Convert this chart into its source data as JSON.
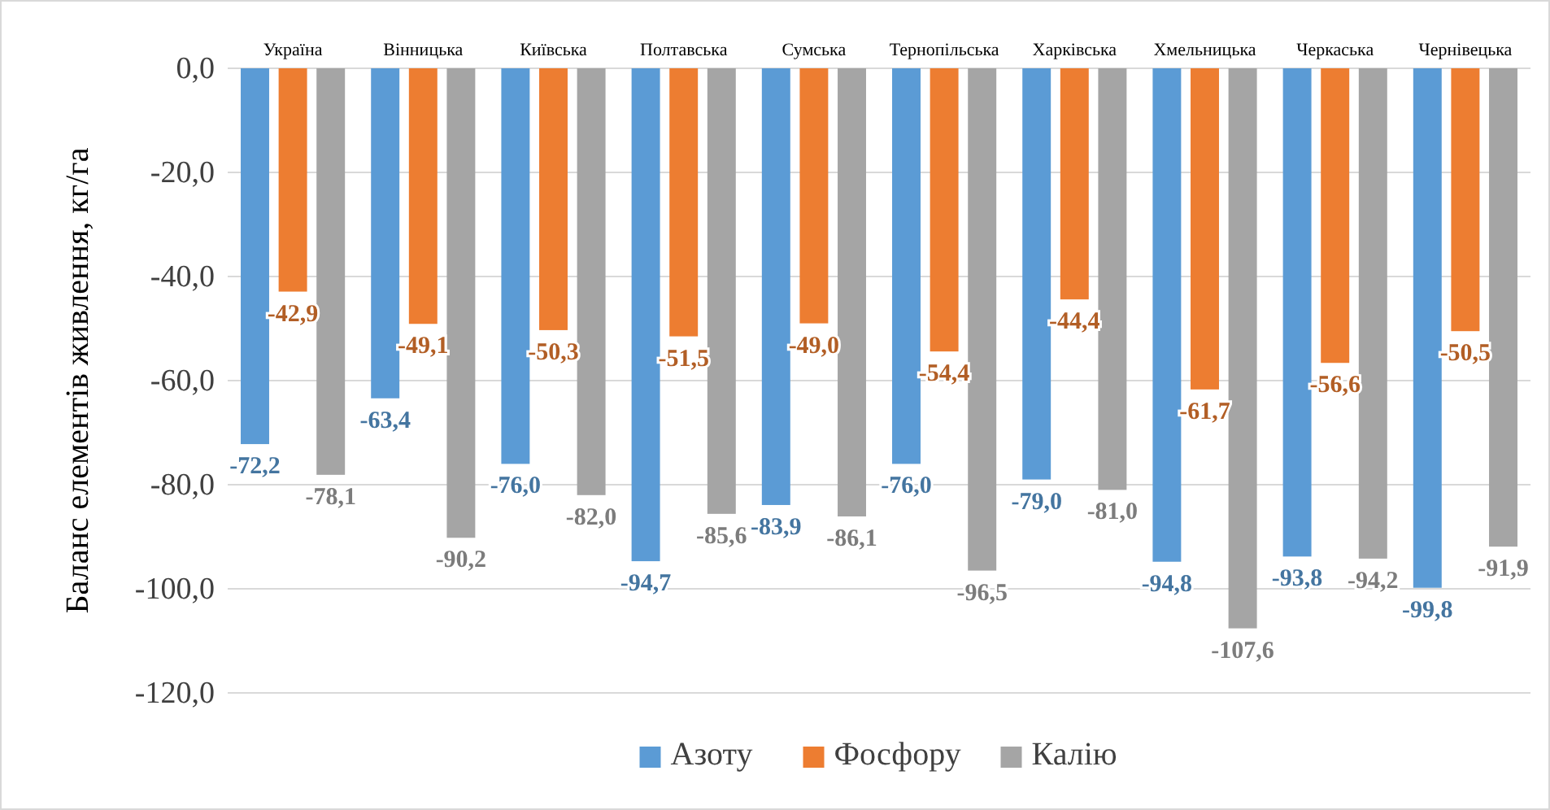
{
  "chart_data": {
    "type": "bar",
    "ylabel": "Баланс елементів живлення, кг/га",
    "categories": [
      "Україна",
      "Вінницька",
      "Київська",
      "Полтавська",
      "Сумська",
      "Тернопільська",
      "Харківська",
      "Хмельницька",
      "Черкаська",
      "Чернівецька"
    ],
    "series": [
      {
        "name": "Азоту",
        "color": "#5b9bd5",
        "values": [
          -72.2,
          -63.4,
          -76.0,
          -94.7,
          -83.9,
          -76.0,
          -79.0,
          -94.8,
          -93.8,
          -99.8
        ],
        "value_labels": [
          "-72,2",
          "-63,4",
          "-76,0",
          "-94,7",
          "-83,9",
          "-76,0",
          "-79,0",
          "-94,8",
          "-93,8",
          "-99,8"
        ]
      },
      {
        "name": "Фосфору",
        "color": "#ed7d31",
        "values": [
          -42.9,
          -49.1,
          -50.3,
          -51.5,
          -49.0,
          -54.4,
          -44.4,
          -61.7,
          -56.6,
          -50.5
        ],
        "value_labels": [
          "-42,9",
          "-49,1",
          "-50,3",
          "-51,5",
          "-49,0",
          "-54,4",
          "-44,4",
          "-61,7",
          "-56,6",
          "-50,5"
        ]
      },
      {
        "name": "Калію",
        "color": "#a5a5a5",
        "values": [
          -78.1,
          -90.2,
          -82.0,
          -85.6,
          -86.1,
          -96.5,
          -81.0,
          -107.6,
          -94.2,
          -91.9
        ],
        "value_labels": [
          "-78,1",
          "-90,2",
          "-82,0",
          "-85,6",
          "-86,1",
          "-96,5",
          "-81,0",
          "-107,6",
          "-94,2",
          "-91,9"
        ]
      }
    ],
    "ylim": [
      -120,
      0
    ],
    "yticks": [
      {
        "value": 0,
        "label": "0,0"
      },
      {
        "value": -20,
        "label": "-20,0"
      },
      {
        "value": -40,
        "label": "-40,0"
      },
      {
        "value": -60,
        "label": "-60,0"
      },
      {
        "value": -80,
        "label": "-80,0"
      },
      {
        "value": -100,
        "label": "-100,0"
      },
      {
        "value": -120,
        "label": "-120,0"
      }
    ],
    "grid": "y",
    "legend": "bottom"
  }
}
